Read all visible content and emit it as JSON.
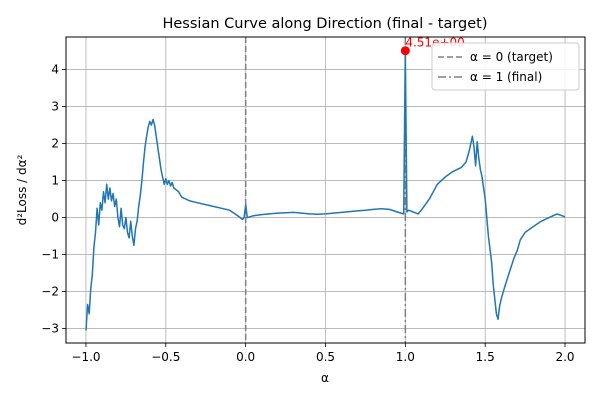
{
  "chart_data": {
    "type": "line",
    "title": "Hessian Curve along Direction (final - target)",
    "xlabel": "α",
    "ylabel": "d²Loss / dα²",
    "xlim": [
      -1.125,
      2.125
    ],
    "ylim": [
      -3.39,
      4.88
    ],
    "grid": true,
    "x_ticks": [
      -1.0,
      -0.5,
      0.0,
      0.5,
      1.0,
      1.5,
      2.0
    ],
    "x_tick_labels": [
      "−1.0",
      "−0.5",
      "0.0",
      "0.5",
      "1.0",
      "1.5",
      "2.0"
    ],
    "y_ticks": [
      -3,
      -2,
      -1,
      0,
      1,
      2,
      3,
      4
    ],
    "y_tick_labels": [
      "−3",
      "−2",
      "−1",
      "0",
      "1",
      "2",
      "3",
      "4"
    ],
    "legend_position": "top-right",
    "colors": {
      "series": "#1f77b4",
      "marker": "#ff0000",
      "vlines": "#808080",
      "grid": "#b0b0b0"
    },
    "series": [
      {
        "values": [
          [
            -1.0,
            -3.05
          ],
          [
            -0.99,
            -2.35
          ],
          [
            -0.98,
            -2.6
          ],
          [
            -0.97,
            -1.9
          ],
          [
            -0.96,
            -1.55
          ],
          [
            -0.95,
            -0.8
          ],
          [
            -0.94,
            -0.4
          ],
          [
            -0.93,
            0.25
          ],
          [
            -0.92,
            -0.2
          ],
          [
            -0.91,
            0.4
          ],
          [
            -0.9,
            0.2
          ],
          [
            -0.89,
            0.7
          ],
          [
            -0.88,
            0.4
          ],
          [
            -0.87,
            0.9
          ],
          [
            -0.86,
            0.5
          ],
          [
            -0.85,
            0.8
          ],
          [
            -0.84,
            0.45
          ],
          [
            -0.83,
            0.65
          ],
          [
            -0.82,
            0.3
          ],
          [
            -0.81,
            0.5
          ],
          [
            -0.8,
            0.0
          ],
          [
            -0.79,
            -0.25
          ],
          [
            -0.78,
            0.25
          ],
          [
            -0.77,
            -0.2
          ],
          [
            -0.76,
            -0.3
          ],
          [
            -0.75,
            0.0
          ],
          [
            -0.74,
            -0.4
          ],
          [
            -0.73,
            -0.55
          ],
          [
            -0.72,
            -0.1
          ],
          [
            -0.71,
            -0.5
          ],
          [
            -0.7,
            -0.75
          ],
          [
            -0.69,
            -0.3
          ],
          [
            -0.68,
            -0.1
          ],
          [
            -0.67,
            0.3
          ],
          [
            -0.66,
            0.6
          ],
          [
            -0.65,
            1.0
          ],
          [
            -0.64,
            1.5
          ],
          [
            -0.63,
            1.9
          ],
          [
            -0.62,
            2.2
          ],
          [
            -0.61,
            2.45
          ],
          [
            -0.6,
            2.6
          ],
          [
            -0.59,
            2.5
          ],
          [
            -0.58,
            2.65
          ],
          [
            -0.57,
            2.5
          ],
          [
            -0.56,
            2.2
          ],
          [
            -0.55,
            1.9
          ],
          [
            -0.54,
            1.6
          ],
          [
            -0.53,
            1.3
          ],
          [
            -0.52,
            1.1
          ],
          [
            -0.51,
            0.9
          ],
          [
            -0.5,
            1.05
          ],
          [
            -0.49,
            0.9
          ],
          [
            -0.48,
            1.0
          ],
          [
            -0.47,
            0.85
          ],
          [
            -0.46,
            0.95
          ],
          [
            -0.45,
            0.8
          ],
          [
            -0.42,
            0.7
          ],
          [
            -0.4,
            0.55
          ],
          [
            -0.35,
            0.45
          ],
          [
            -0.3,
            0.4
          ],
          [
            -0.25,
            0.35
          ],
          [
            -0.2,
            0.3
          ],
          [
            -0.15,
            0.25
          ],
          [
            -0.1,
            0.2
          ],
          [
            -0.05,
            0.05
          ],
          [
            -0.02,
            -0.05
          ],
          [
            -0.01,
            0.0
          ],
          [
            0.0,
            0.35
          ],
          [
            0.01,
            0.0
          ],
          [
            0.05,
            0.05
          ],
          [
            0.1,
            0.08
          ],
          [
            0.15,
            0.1
          ],
          [
            0.2,
            0.12
          ],
          [
            0.25,
            0.13
          ],
          [
            0.3,
            0.14
          ],
          [
            0.35,
            0.12
          ],
          [
            0.4,
            0.1
          ],
          [
            0.45,
            0.09
          ],
          [
            0.5,
            0.1
          ],
          [
            0.55,
            0.12
          ],
          [
            0.6,
            0.14
          ],
          [
            0.65,
            0.16
          ],
          [
            0.7,
            0.18
          ],
          [
            0.75,
            0.2
          ],
          [
            0.8,
            0.22
          ],
          [
            0.85,
            0.24
          ],
          [
            0.9,
            0.22
          ],
          [
            0.95,
            0.15
          ],
          [
            0.99,
            0.1
          ],
          [
            1.0,
            4.51
          ],
          [
            1.01,
            0.15
          ],
          [
            1.02,
            0.2
          ],
          [
            1.05,
            0.15
          ],
          [
            1.08,
            0.1
          ],
          [
            1.1,
            0.2
          ],
          [
            1.15,
            0.5
          ],
          [
            1.2,
            0.9
          ],
          [
            1.25,
            1.1
          ],
          [
            1.3,
            1.25
          ],
          [
            1.35,
            1.35
          ],
          [
            1.38,
            1.5
          ],
          [
            1.4,
            1.8
          ],
          [
            1.42,
            2.2
          ],
          [
            1.43,
            1.9
          ],
          [
            1.44,
            1.4
          ],
          [
            1.45,
            2.05
          ],
          [
            1.46,
            1.6
          ],
          [
            1.47,
            1.3
          ],
          [
            1.48,
            1.1
          ],
          [
            1.5,
            0.5
          ],
          [
            1.52,
            -0.5
          ],
          [
            1.54,
            -1.2
          ],
          [
            1.55,
            -1.8
          ],
          [
            1.56,
            -2.2
          ],
          [
            1.57,
            -2.6
          ],
          [
            1.58,
            -2.75
          ],
          [
            1.59,
            -2.4
          ],
          [
            1.6,
            -2.2
          ],
          [
            1.62,
            -1.9
          ],
          [
            1.65,
            -1.5
          ],
          [
            1.68,
            -1.1
          ],
          [
            1.7,
            -0.9
          ],
          [
            1.72,
            -0.6
          ],
          [
            1.75,
            -0.4
          ],
          [
            1.8,
            -0.25
          ],
          [
            1.85,
            -0.1
          ],
          [
            1.9,
            0.0
          ],
          [
            1.95,
            0.1
          ],
          [
            1.98,
            0.05
          ],
          [
            2.0,
            0.02
          ]
        ]
      }
    ],
    "vlines": [
      {
        "x": 0,
        "label": "α = 0 (target)",
        "style": "dashed"
      },
      {
        "x": 1,
        "label": "α = 1 (final)",
        "style": "dashdot"
      }
    ],
    "marker": {
      "x": 1.0,
      "y": 4.51,
      "label": "4.51e+00"
    }
  }
}
